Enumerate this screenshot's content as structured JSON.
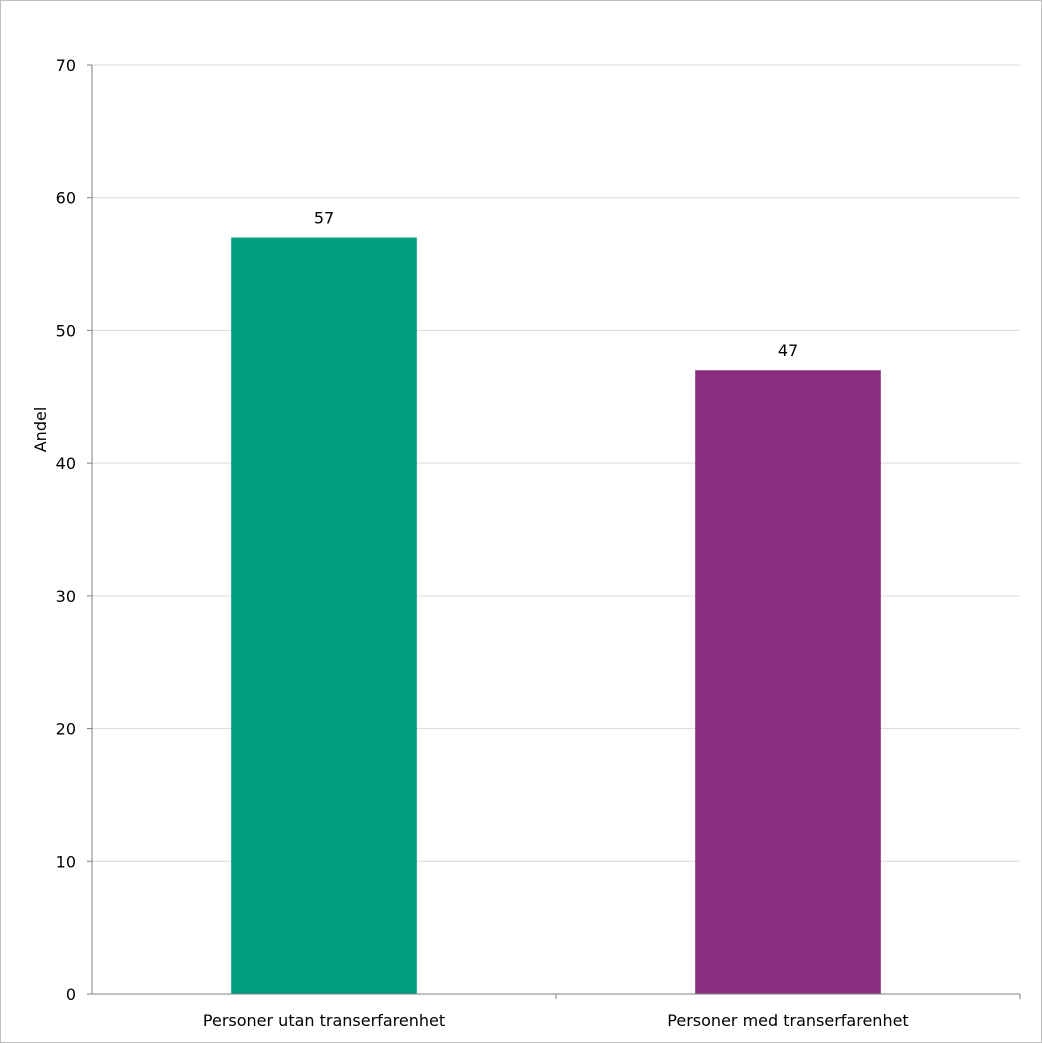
{
  "chart_data": {
    "type": "bar",
    "categories": [
      "Personer utan transerfarenhet",
      "Personer med transerfarenhet"
    ],
    "values": [
      57,
      47
    ],
    "data_labels": [
      "57",
      "47"
    ],
    "bar_colors": [
      "#009E7E",
      "#8B2D7E"
    ],
    "title": "",
    "xlabel": "",
    "ylabel": "Andel",
    "ylim": [
      0,
      70
    ],
    "yticks": [
      0,
      10,
      20,
      30,
      40,
      50,
      60,
      70
    ],
    "ytick_labels": [
      "0",
      "10",
      "20",
      "30",
      "40",
      "50",
      "60",
      "70"
    ],
    "grid": true,
    "legend": "none"
  }
}
